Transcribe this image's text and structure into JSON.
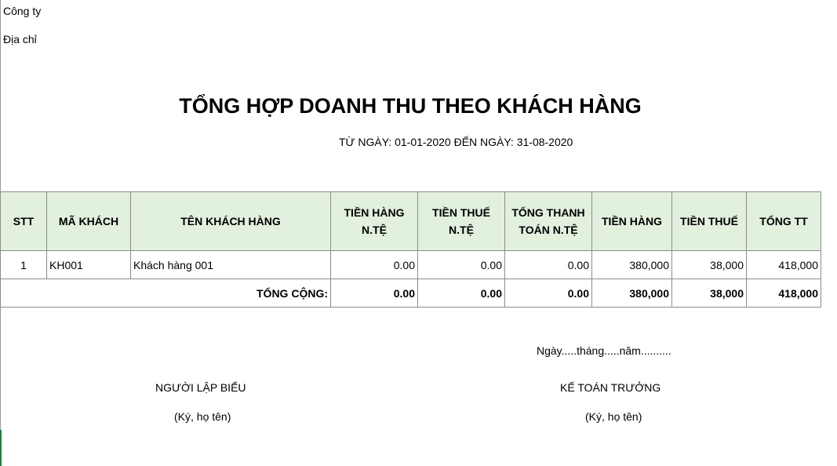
{
  "company_label": "Công ty",
  "address_label": "Địa chỉ",
  "title": "TỔNG HỢP DOANH THU THEO KHÁCH HÀNG",
  "date_range": "TỪ NGÀY: 01-01-2020 ĐẾN NGÀY: 31-08-2020",
  "table": {
    "headers": [
      "STT",
      "MÃ KHÁCH",
      "TÊN KHÁCH HÀNG",
      "TIỀN HÀNG N.TỆ",
      "TIỀN THUẾ N.TỆ",
      "TỔNG THANH TOÁN N.TỆ",
      "TIỀN HÀNG",
      "TIỀN THUẾ",
      "TỔNG TT"
    ],
    "rows": [
      [
        "1",
        "KH001",
        "Khách hàng 001",
        "0.00",
        "0.00",
        "0.00",
        "380,000",
        "38,000",
        "418,000"
      ]
    ],
    "total": {
      "label": "TỔNG CỘNG:",
      "values": [
        "0.00",
        "0.00",
        "0.00",
        "380,000",
        "38,000",
        "418,000"
      ]
    }
  },
  "date_line": "Ngày.....tháng.....năm..........",
  "signatures": {
    "preparer": {
      "title": "NGƯỜI LẬP BIỂU",
      "note": "(Ký, họ tên)"
    },
    "chief_accountant": {
      "title": "KẾ TOÁN TRƯỞNG",
      "note": "(Ký, họ tên)"
    }
  },
  "colors": {
    "header_bg": "#e2f0de",
    "border": "#8c8c8c"
  }
}
